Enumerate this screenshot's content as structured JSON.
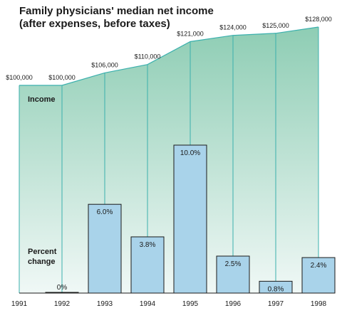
{
  "chart_data": {
    "type": "area+bar",
    "title": "Family physicians' median net income",
    "subtitle": "(after expenses, before taxes)",
    "income_label": "Income",
    "percent_label_line1": "Percent",
    "percent_label_line2": "change",
    "x": [
      "1991",
      "1992",
      "1993",
      "1994",
      "1995",
      "1996",
      "1997",
      "1998"
    ],
    "income": {
      "values": [
        100000,
        100000,
        106000,
        110000,
        121000,
        124000,
        125000,
        128000
      ],
      "labels": [
        "$100,000",
        "$100,000",
        "$106,000",
        "$110,000",
        "$121,000",
        "$124,000",
        "$125,000",
        "$128,000"
      ]
    },
    "percent_change": {
      "categories": [
        "1992",
        "1993",
        "1994",
        "1995",
        "1996",
        "1997",
        "1998"
      ],
      "values": [
        0,
        6.0,
        3.8,
        10.0,
        2.5,
        0.8,
        2.4
      ],
      "labels": [
        "0%",
        "6.0%",
        "3.8%",
        "10.0%",
        "2.5%",
        "0.8%",
        "2.4%"
      ]
    },
    "colors": {
      "area_top": "#8ecdb4",
      "area_bottom": "#f0f8f6",
      "area_line": "#3bb0ad",
      "bar_fill": "#a9d3ea",
      "bar_stroke": "#1a1a1a"
    }
  }
}
